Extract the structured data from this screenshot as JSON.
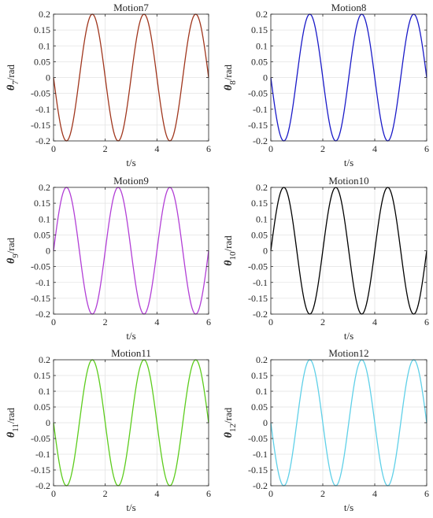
{
  "chart_data": [
    {
      "type": "line",
      "title": "Motion7",
      "xlabel": "t/s",
      "ylabel": {
        "symbol": "θ",
        "subscript": "7",
        "unit": "/rad"
      },
      "xlim": [
        0,
        6
      ],
      "ylim": [
        -0.2,
        0.2
      ],
      "xticks": [
        "0",
        "2",
        "4",
        "6"
      ],
      "yticks": [
        "-0.2",
        "-0.15",
        "-0.1",
        "-0.05",
        "0",
        "0.05",
        "0.1",
        "0.15",
        "0.2"
      ],
      "grid": true,
      "color": "#a0361d",
      "series": [
        {
          "x": [
            0,
            0.5,
            1,
            1.5,
            2,
            2.5,
            3,
            3.5,
            4,
            4.5,
            5,
            5.5,
            6
          ],
          "values": [
            0,
            -0.2,
            0,
            0.2,
            0,
            -0.2,
            0,
            0.2,
            0,
            -0.2,
            0,
            0.2,
            0
          ]
        }
      ]
    },
    {
      "type": "line",
      "title": "Motion8",
      "xlabel": "t/s",
      "ylabel": {
        "symbol": "θ",
        "subscript": "8",
        "unit": "/rad"
      },
      "xlim": [
        0,
        6
      ],
      "ylim": [
        -0.2,
        0.2
      ],
      "xticks": [
        "0",
        "2",
        "4",
        "6"
      ],
      "yticks": [
        "-0.2",
        "-0.15",
        "-0.1",
        "-0.05",
        "0",
        "0.05",
        "0.1",
        "0.15",
        "0.2"
      ],
      "grid": true,
      "color": "#1a1ac8",
      "series": [
        {
          "x": [
            0,
            0.5,
            1,
            1.5,
            2,
            2.5,
            3,
            3.5,
            4,
            4.5,
            5,
            5.5,
            6
          ],
          "values": [
            0,
            -0.2,
            0,
            0.2,
            0,
            -0.2,
            0,
            0.2,
            0,
            -0.2,
            0,
            0.2,
            0
          ]
        }
      ]
    },
    {
      "type": "line",
      "title": "Motion9",
      "xlabel": "t/s",
      "ylabel": {
        "symbol": "θ",
        "subscript": "9",
        "unit": "/rad"
      },
      "xlim": [
        0,
        6
      ],
      "ylim": [
        -0.2,
        0.2
      ],
      "xticks": [
        "0",
        "2",
        "4",
        "6"
      ],
      "yticks": [
        "-0.2",
        "-0.15",
        "-0.1",
        "-0.05",
        "0",
        "0.05",
        "0.1",
        "0.15",
        "0.2"
      ],
      "grid": true,
      "color": "#b23fd6",
      "series": [
        {
          "x": [
            0,
            0.5,
            1,
            1.5,
            2,
            2.5,
            3,
            3.5,
            4,
            4.5,
            5,
            5.5,
            6
          ],
          "values": [
            0,
            0.2,
            0,
            -0.2,
            0,
            0.2,
            0,
            -0.2,
            0,
            0.2,
            0,
            -0.2,
            0
          ]
        }
      ]
    },
    {
      "type": "line",
      "title": "Motion10",
      "xlabel": "t/s",
      "ylabel": {
        "symbol": "θ",
        "subscript": "10",
        "unit": "/rad"
      },
      "xlim": [
        0,
        6
      ],
      "ylim": [
        -0.2,
        0.2
      ],
      "xticks": [
        "0",
        "2",
        "4",
        "6"
      ],
      "yticks": [
        "-0.2",
        "-0.15",
        "-0.1",
        "-0.05",
        "0",
        "0.05",
        "0.1",
        "0.15",
        "0.2"
      ],
      "grid": true,
      "color": "#000000",
      "series": [
        {
          "x": [
            0,
            0.5,
            1,
            1.5,
            2,
            2.5,
            3,
            3.5,
            4,
            4.5,
            5,
            5.5,
            6
          ],
          "values": [
            0,
            0.2,
            0,
            -0.2,
            0,
            0.2,
            0,
            -0.2,
            0,
            0.2,
            0,
            -0.2,
            0
          ]
        }
      ]
    },
    {
      "type": "line",
      "title": "Motion11",
      "xlabel": "t/s",
      "ylabel": {
        "symbol": "θ",
        "subscript": "11",
        "unit": "/rad"
      },
      "xlim": [
        0,
        6
      ],
      "ylim": [
        -0.2,
        0.2
      ],
      "xticks": [
        "0",
        "2",
        "4",
        "6"
      ],
      "yticks": [
        "-0.2",
        "-0.15",
        "-0.1",
        "-0.05",
        "0",
        "0.05",
        "0.1",
        "0.15",
        "0.2"
      ],
      "grid": true,
      "color": "#5ccc1c",
      "series": [
        {
          "x": [
            0,
            0.5,
            1,
            1.5,
            2,
            2.5,
            3,
            3.5,
            4,
            4.5,
            5,
            5.5,
            6
          ],
          "values": [
            0,
            -0.2,
            0,
            0.2,
            0,
            -0.2,
            0,
            0.2,
            0,
            -0.2,
            0,
            0.2,
            0
          ]
        }
      ]
    },
    {
      "type": "line",
      "title": "Motion12",
      "xlabel": "t/s",
      "ylabel": {
        "symbol": "θ",
        "subscript": "12",
        "unit": "/rad"
      },
      "xlim": [
        0,
        6
      ],
      "ylim": [
        -0.2,
        0.2
      ],
      "xticks": [
        "0",
        "2",
        "4",
        "6"
      ],
      "yticks": [
        "-0.2",
        "-0.15",
        "-0.1",
        "-0.05",
        "0",
        "0.05",
        "0.1",
        "0.15",
        "0.2"
      ],
      "grid": true,
      "color": "#5fd0e8",
      "series": [
        {
          "x": [
            0,
            0.5,
            1,
            1.5,
            2,
            2.5,
            3,
            3.5,
            4,
            4.5,
            5,
            5.5,
            6
          ],
          "values": [
            0,
            -0.2,
            0,
            0.2,
            0,
            -0.2,
            0,
            0.2,
            0,
            -0.2,
            0,
            0.2,
            0
          ]
        }
      ]
    }
  ]
}
